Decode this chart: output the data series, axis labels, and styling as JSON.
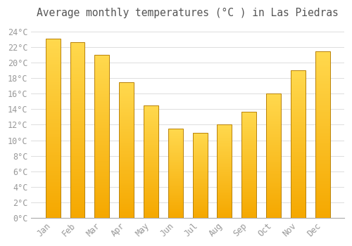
{
  "title": "Average monthly temperatures (°C ) in Las Piedras",
  "months": [
    "Jan",
    "Feb",
    "Mar",
    "Apr",
    "May",
    "Jun",
    "Jul",
    "Aug",
    "Sep",
    "Oct",
    "Nov",
    "Dec"
  ],
  "values": [
    23.1,
    22.7,
    21.0,
    17.5,
    14.5,
    11.5,
    11.0,
    12.0,
    13.7,
    16.0,
    19.0,
    21.5
  ],
  "bar_color_bottom": "#F5A800",
  "bar_color_top": "#FFD84D",
  "bar_edge_color": "#B8820A",
  "background_color": "#ffffff",
  "grid_color": "#d8d8d8",
  "ylim": [
    0,
    25
  ],
  "yticks": [
    0,
    2,
    4,
    6,
    8,
    10,
    12,
    14,
    16,
    18,
    20,
    22,
    24
  ],
  "ytick_labels": [
    "0°C",
    "2°C",
    "4°C",
    "6°C",
    "8°C",
    "10°C",
    "12°C",
    "14°C",
    "16°C",
    "18°C",
    "20°C",
    "22°C",
    "24°C"
  ],
  "title_fontsize": 10.5,
  "tick_fontsize": 8.5,
  "title_color": "#555555",
  "tick_color": "#999999",
  "figsize": [
    5.0,
    3.5
  ],
  "dpi": 100,
  "bar_width": 0.6,
  "n_gradient_steps": 100
}
